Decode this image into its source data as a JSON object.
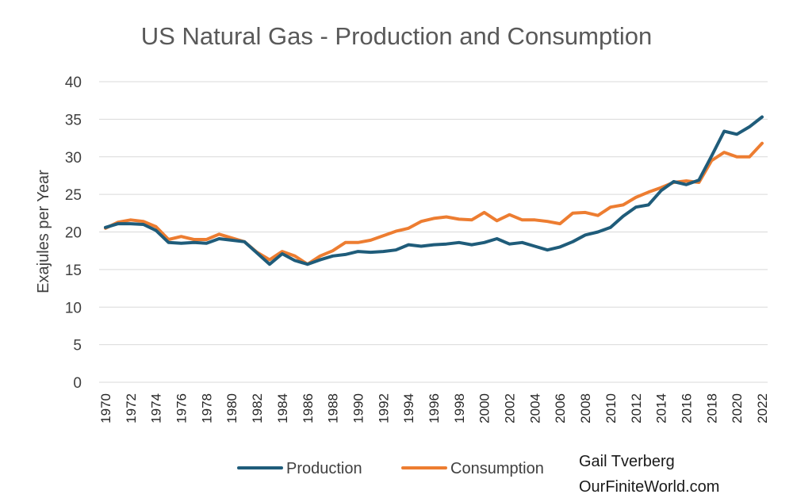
{
  "chart_data": {
    "type": "line",
    "title": "US Natural Gas - Production and Consumption",
    "xlabel": "",
    "ylabel": "Exajules per Year",
    "ylim": [
      0,
      40
    ],
    "yticks": [
      "0",
      "5",
      "10",
      "15",
      "20",
      "25",
      "30",
      "35",
      "40"
    ],
    "grid": true,
    "legend_position": "bottom",
    "x": [
      1970,
      1971,
      1972,
      1973,
      1974,
      1975,
      1976,
      1977,
      1978,
      1979,
      1980,
      1981,
      1982,
      1983,
      1984,
      1985,
      1986,
      1987,
      1988,
      1989,
      1990,
      1991,
      1992,
      1993,
      1994,
      1995,
      1996,
      1997,
      1998,
      1999,
      2000,
      2001,
      2002,
      2003,
      2004,
      2005,
      2006,
      2007,
      2008,
      2009,
      2010,
      2011,
      2012,
      2013,
      2014,
      2015,
      2016,
      2017,
      2018,
      2019,
      2020,
      2021,
      2022
    ],
    "xtick_labels": [
      "1970",
      "1972",
      "1974",
      "1976",
      "1978",
      "1980",
      "1982",
      "1984",
      "1986",
      "1988",
      "1990",
      "1992",
      "1994",
      "1996",
      "1998",
      "2000",
      "2002",
      "2004",
      "2006",
      "2008",
      "2010",
      "2012",
      "2014",
      "2016",
      "2018",
      "2020",
      "2022"
    ],
    "series": [
      {
        "name": "Production",
        "color": "#1f5c7a",
        "values": [
          20.6,
          21.1,
          21.1,
          21.0,
          20.2,
          18.6,
          18.5,
          18.6,
          18.5,
          19.1,
          18.9,
          18.7,
          17.2,
          15.7,
          17.1,
          16.2,
          15.7,
          16.3,
          16.8,
          17.0,
          17.4,
          17.3,
          17.4,
          17.6,
          18.3,
          18.1,
          18.3,
          18.4,
          18.6,
          18.3,
          18.6,
          19.1,
          18.4,
          18.6,
          18.1,
          17.6,
          18.0,
          18.7,
          19.6,
          20.0,
          20.6,
          22.1,
          23.3,
          23.6,
          25.5,
          26.7,
          26.3,
          26.9,
          30.1,
          33.4,
          33.0,
          34.0,
          35.3
        ]
      },
      {
        "name": "Consumption",
        "color": "#ed7d31",
        "values": [
          20.5,
          21.3,
          21.6,
          21.4,
          20.7,
          19.0,
          19.4,
          19.0,
          19.0,
          19.7,
          19.2,
          18.7,
          17.3,
          16.3,
          17.4,
          16.8,
          15.7,
          16.8,
          17.5,
          18.6,
          18.6,
          18.9,
          19.5,
          20.1,
          20.5,
          21.4,
          21.8,
          22.0,
          21.7,
          21.6,
          22.6,
          21.5,
          22.3,
          21.6,
          21.6,
          21.4,
          21.1,
          22.5,
          22.6,
          22.2,
          23.3,
          23.6,
          24.6,
          25.3,
          25.9,
          26.6,
          26.8,
          26.6,
          29.5,
          30.6,
          30.0,
          30.0,
          31.8
        ]
      }
    ]
  },
  "credit": {
    "line1": "Gail Tverberg",
    "line2": "OurFiniteWorld.com"
  }
}
